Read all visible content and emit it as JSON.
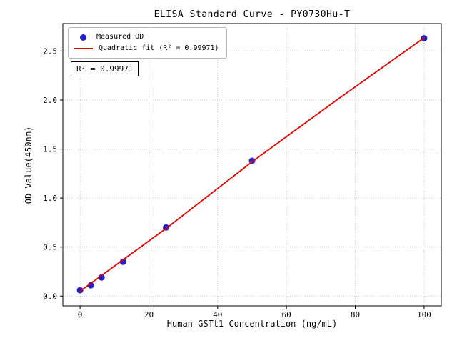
{
  "chart_data": {
    "type": "scatter",
    "title": "ELISA Standard Curve - PY0730Hu-T",
    "xlabel": "Human GSTt1 Concentration (ng/mL)",
    "ylabel": "OD Value(450nm)",
    "xlim": [
      -5,
      105
    ],
    "ylim": [
      -0.1,
      2.78
    ],
    "xticks": [
      0,
      20,
      40,
      60,
      80,
      100
    ],
    "yticks": [
      0.0,
      0.5,
      1.0,
      1.5,
      2.0,
      2.5
    ],
    "grid": "dotted",
    "grid_color": "#b5b5b5",
    "legend_position": "upper-left",
    "annotation": "R² = 0.99971",
    "series": [
      {
        "name": "Measured OD",
        "type": "scatter",
        "color": "#2222cc",
        "x": [
          0,
          3.125,
          6.25,
          12.5,
          25,
          50,
          100
        ],
        "y": [
          0.06,
          0.11,
          0.19,
          0.35,
          0.7,
          1.38,
          2.63
        ]
      },
      {
        "name": "Quadratic fit (R² = 0.99971)",
        "type": "line",
        "color": "#dd0000",
        "x": [
          0,
          12.5,
          25,
          50,
          75,
          100
        ],
        "y": [
          0.05,
          0.37,
          0.69,
          1.37,
          2.01,
          2.635
        ]
      }
    ]
  }
}
